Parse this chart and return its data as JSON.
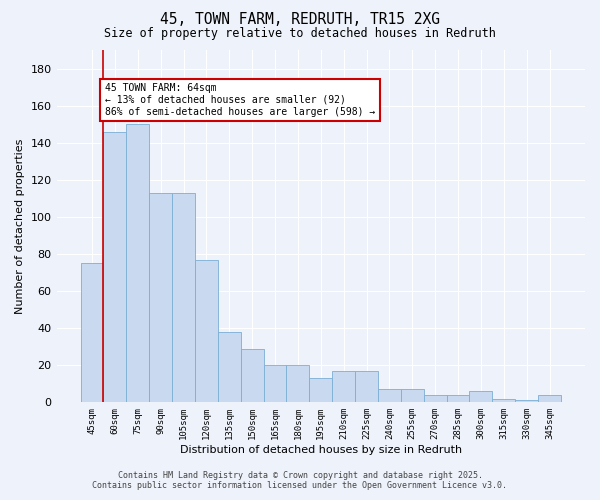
{
  "title": "45, TOWN FARM, REDRUTH, TR15 2XG",
  "subtitle": "Size of property relative to detached houses in Redruth",
  "xlabel": "Distribution of detached houses by size in Redruth",
  "ylabel": "Number of detached properties",
  "categories": [
    "45sqm",
    "60sqm",
    "75sqm",
    "90sqm",
    "105sqm",
    "120sqm",
    "135sqm",
    "150sqm",
    "165sqm",
    "180sqm",
    "195sqm",
    "210sqm",
    "225sqm",
    "240sqm",
    "255sqm",
    "270sqm",
    "285sqm",
    "300sqm",
    "315sqm",
    "330sqm",
    "345sqm"
  ],
  "values": [
    75,
    146,
    150,
    113,
    113,
    77,
    38,
    29,
    20,
    20,
    13,
    17,
    17,
    7,
    7,
    4,
    4,
    6,
    2,
    1,
    4
  ],
  "bar_color": "#c9d9f0",
  "bar_edge_color": "#7bafd4",
  "red_line_x": 0.5,
  "annotation_text": "45 TOWN FARM: 64sqm\n← 13% of detached houses are smaller (92)\n86% of semi-detached houses are larger (598) →",
  "annotation_box_color": "#ffffff",
  "annotation_box_edge": "#cc0000",
  "footer_line1": "Contains HM Land Registry data © Crown copyright and database right 2025.",
  "footer_line2": "Contains public sector information licensed under the Open Government Licence v3.0.",
  "bg_color": "#eef2fb",
  "grid_color": "#ffffff",
  "ylim": [
    0,
    190
  ],
  "yticks": [
    0,
    20,
    40,
    60,
    80,
    100,
    120,
    140,
    160,
    180
  ]
}
